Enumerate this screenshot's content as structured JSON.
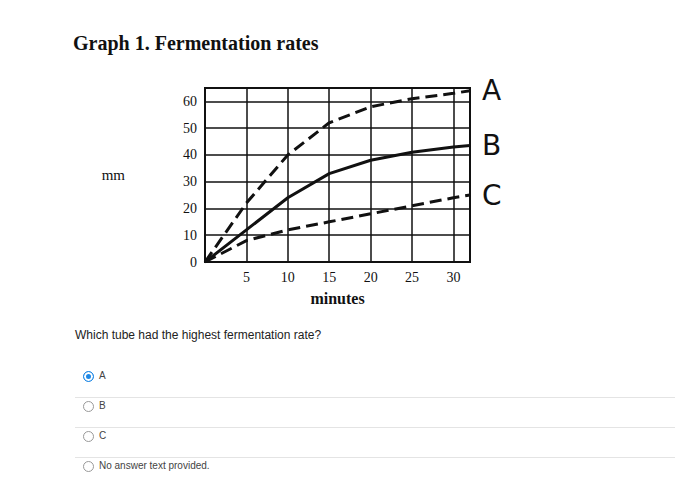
{
  "chart_data": {
    "type": "line",
    "title": "Graph 1. Fermentation rates",
    "x_label": "minutes",
    "y_label": "mm",
    "x": [
      0,
      5,
      10,
      15,
      20,
      25,
      30,
      32
    ],
    "series": [
      {
        "name": "A",
        "color": "#111111",
        "line_style": "dashed",
        "values": [
          0,
          22,
          40,
          52,
          58,
          61,
          63,
          64
        ]
      },
      {
        "name": "B",
        "color": "#111111",
        "line_style": "solid",
        "values": [
          0,
          12,
          24,
          33,
          38,
          41,
          43,
          43.5
        ]
      },
      {
        "name": "C",
        "color": "#111111",
        "line_style": "dashed",
        "values": [
          0,
          8,
          12,
          15,
          18,
          21,
          24,
          25
        ]
      }
    ],
    "xlim": [
      0,
      32
    ],
    "xticks": [
      5,
      10,
      15,
      20,
      25,
      30
    ],
    "ylim": [
      0,
      65
    ],
    "yticks": [
      0,
      10,
      20,
      30,
      40,
      50,
      60
    ],
    "grid": true
  },
  "quiz": {
    "question": "Which tube had the highest fermentation rate?",
    "options": [
      "A",
      "B",
      "C",
      "No answer text provided."
    ],
    "selected": "A"
  }
}
